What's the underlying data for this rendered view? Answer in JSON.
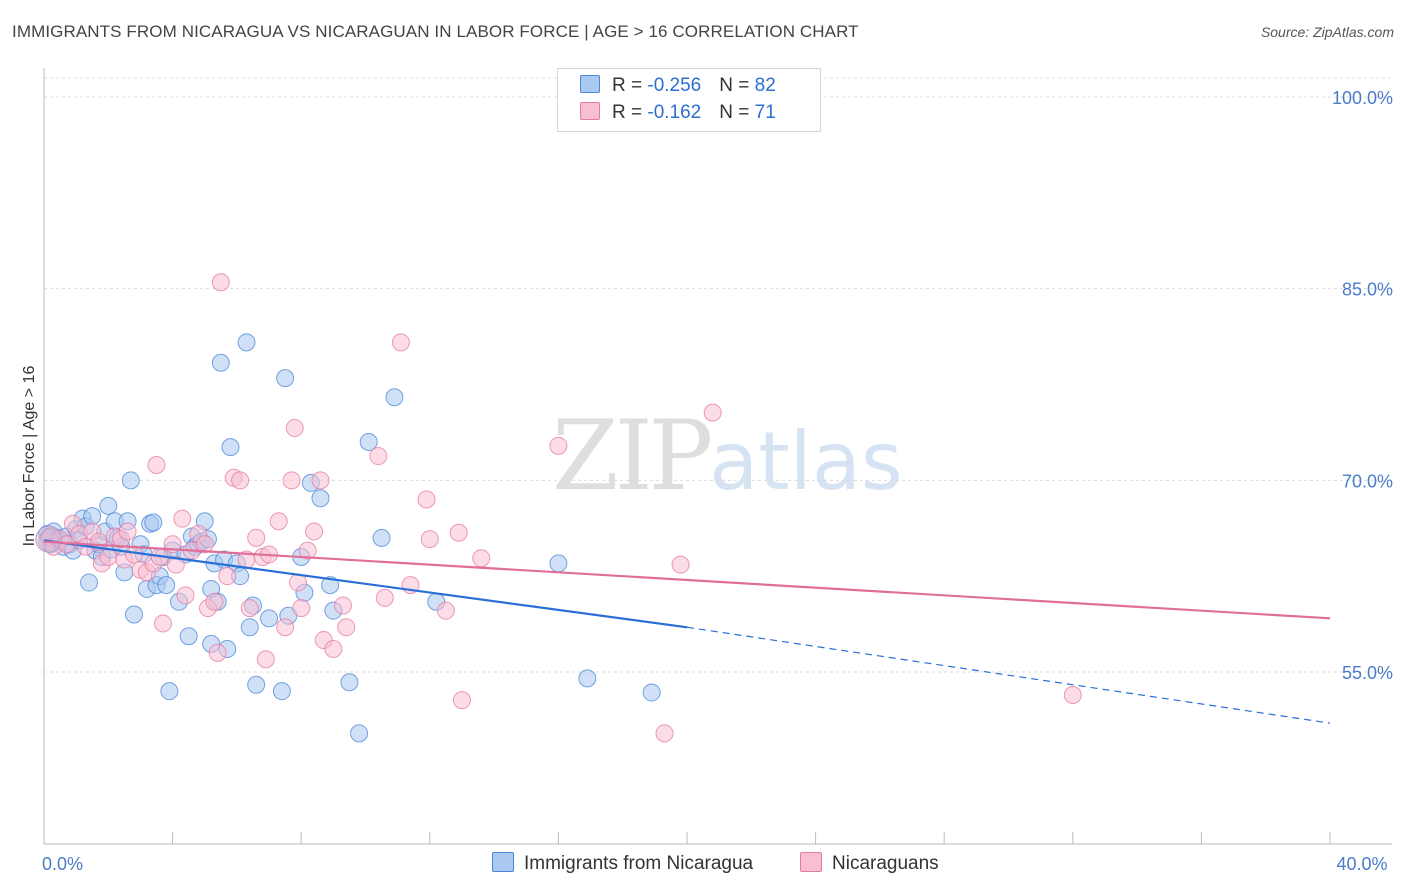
{
  "title": "IMMIGRANTS FROM NICARAGUA VS NICARAGUAN IN LABOR FORCE | AGE > 16 CORRELATION CHART",
  "source": "Source: ZipAtlas.com",
  "watermark": {
    "zip": "ZIP",
    "atlas": "atlas"
  },
  "legend": {
    "rows": [
      {
        "r_label": "R = ",
        "r_value": "-0.256",
        "n_label": "N = ",
        "n_value": "82",
        "color": "#aac8f0"
      },
      {
        "r_label": "R = ",
        "r_value": "-0.162",
        "n_label": "N = ",
        "n_value": "71",
        "color": "#f8bfd3"
      }
    ]
  },
  "bottom_legend": [
    {
      "label": "Immigrants from Nicaragua",
      "color": "#aac8f0"
    },
    {
      "label": "Nicaraguans",
      "color": "#f8bfd3"
    }
  ],
  "chart_data": {
    "type": "scatter",
    "ylabel": "In Labor Force | Age > 16",
    "xlim": [
      0,
      40
    ],
    "ylim": [
      40,
      102
    ],
    "x_tick_labels": [
      {
        "value": 0,
        "label": "0.0%"
      },
      {
        "value": 40,
        "label": "40.0%"
      }
    ],
    "y_ticks": [
      {
        "value": 100,
        "label": "100.0%"
      },
      {
        "value": 85,
        "label": "85.0%"
      },
      {
        "value": 70,
        "label": "70.0%"
      },
      {
        "value": 55,
        "label": "55.0%"
      }
    ],
    "x_minor_ticks": [
      0,
      4,
      8,
      12,
      16,
      20,
      24,
      28,
      32,
      36,
      40
    ],
    "grid": true,
    "series": [
      {
        "name": "Immigrants from Nicaragua",
        "color": "#4a86d8",
        "fill": "#aac8f0",
        "trend": {
          "x0": 0,
          "y0": 65.3,
          "x1": 20,
          "y1": 58.5,
          "x_dash_end": 40,
          "y_dash_end": 51.0,
          "color": "#2a6fd6"
        },
        "points": [
          [
            0.1,
            65.8
          ],
          [
            0.2,
            65.0
          ],
          [
            0.3,
            66.0
          ],
          [
            0.4,
            65.5
          ],
          [
            0.5,
            65.2
          ],
          [
            0.6,
            64.8
          ],
          [
            0.7,
            65.6
          ],
          [
            0.8,
            65.0
          ],
          [
            0.9,
            64.5
          ],
          [
            1.0,
            66.2
          ],
          [
            1.1,
            65.3
          ],
          [
            1.2,
            67.0
          ],
          [
            1.3,
            66.4
          ],
          [
            1.4,
            62.0
          ],
          [
            1.5,
            67.2
          ],
          [
            1.6,
            64.5
          ],
          [
            1.7,
            65.0
          ],
          [
            1.8,
            64.0
          ],
          [
            1.9,
            66.0
          ],
          [
            2.0,
            68.0
          ],
          [
            2.1,
            64.6
          ],
          [
            2.2,
            66.8
          ],
          [
            2.3,
            65.5
          ],
          [
            2.4,
            64.8
          ],
          [
            2.5,
            62.8
          ],
          [
            2.6,
            66.8
          ],
          [
            2.7,
            70.0
          ],
          [
            2.8,
            59.5
          ],
          [
            3.0,
            65.0
          ],
          [
            3.1,
            64.2
          ],
          [
            3.2,
            61.5
          ],
          [
            3.3,
            66.6
          ],
          [
            3.4,
            66.7
          ],
          [
            3.5,
            61.8
          ],
          [
            3.6,
            62.5
          ],
          [
            3.7,
            64.0
          ],
          [
            3.8,
            61.8
          ],
          [
            3.9,
            53.5
          ],
          [
            4.0,
            64.5
          ],
          [
            4.2,
            60.5
          ],
          [
            4.4,
            64.2
          ],
          [
            4.5,
            57.8
          ],
          [
            4.6,
            65.6
          ],
          [
            4.7,
            64.8
          ],
          [
            4.8,
            65.0
          ],
          [
            4.9,
            65.2
          ],
          [
            5.0,
            66.8
          ],
          [
            5.1,
            65.4
          ],
          [
            5.2,
            61.5
          ],
          [
            5.2,
            57.2
          ],
          [
            5.3,
            63.5
          ],
          [
            5.4,
            60.5
          ],
          [
            5.5,
            79.2
          ],
          [
            5.6,
            63.8
          ],
          [
            5.7,
            56.8
          ],
          [
            5.8,
            72.6
          ],
          [
            6.0,
            63.5
          ],
          [
            6.1,
            62.5
          ],
          [
            6.3,
            80.8
          ],
          [
            6.4,
            58.5
          ],
          [
            6.5,
            60.2
          ],
          [
            6.6,
            54.0
          ],
          [
            7.0,
            59.2
          ],
          [
            7.4,
            53.5
          ],
          [
            7.5,
            78.0
          ],
          [
            7.6,
            59.4
          ],
          [
            8.0,
            64.0
          ],
          [
            8.1,
            61.2
          ],
          [
            8.3,
            69.8
          ],
          [
            8.6,
            68.6
          ],
          [
            8.9,
            61.8
          ],
          [
            9.0,
            59.8
          ],
          [
            9.5,
            54.2
          ],
          [
            9.8,
            50.2
          ],
          [
            10.1,
            73.0
          ],
          [
            10.5,
            65.5
          ],
          [
            10.9,
            76.5
          ],
          [
            12.2,
            60.5
          ],
          [
            16.0,
            63.5
          ],
          [
            16.9,
            54.5
          ],
          [
            18.9,
            53.4
          ],
          [
            0.15,
            65.5
          ]
        ]
      },
      {
        "name": "Nicaraguans",
        "color": "#e77aa0",
        "fill": "#f8bfd3",
        "trend": {
          "x0": 0,
          "y0": 65.2,
          "x1": 40,
          "y1": 59.2,
          "color": "#e06f98"
        },
        "points": [
          [
            0.1,
            65.2
          ],
          [
            0.2,
            65.6
          ],
          [
            0.3,
            64.8
          ],
          [
            0.5,
            65.4
          ],
          [
            0.7,
            65.0
          ],
          [
            0.9,
            66.6
          ],
          [
            1.1,
            65.8
          ],
          [
            1.3,
            64.8
          ],
          [
            1.5,
            66.0
          ],
          [
            1.7,
            65.2
          ],
          [
            1.8,
            63.5
          ],
          [
            2.0,
            64.0
          ],
          [
            2.2,
            65.6
          ],
          [
            2.4,
            65.4
          ],
          [
            2.5,
            63.8
          ],
          [
            2.6,
            66.0
          ],
          [
            2.8,
            64.2
          ],
          [
            3.0,
            63.0
          ],
          [
            3.2,
            62.8
          ],
          [
            3.4,
            63.5
          ],
          [
            3.5,
            71.2
          ],
          [
            3.6,
            64.0
          ],
          [
            3.7,
            58.8
          ],
          [
            4.0,
            65.0
          ],
          [
            4.1,
            63.4
          ],
          [
            4.3,
            67.0
          ],
          [
            4.4,
            61.0
          ],
          [
            4.6,
            64.5
          ],
          [
            4.8,
            65.8
          ],
          [
            5.0,
            65.0
          ],
          [
            5.1,
            60.0
          ],
          [
            5.3,
            60.5
          ],
          [
            5.4,
            56.5
          ],
          [
            5.5,
            85.5
          ],
          [
            5.7,
            62.5
          ],
          [
            5.9,
            70.2
          ],
          [
            6.1,
            70.0
          ],
          [
            6.3,
            63.8
          ],
          [
            6.4,
            60.0
          ],
          [
            6.6,
            65.5
          ],
          [
            6.8,
            64.0
          ],
          [
            6.9,
            56.0
          ],
          [
            7.0,
            64.2
          ],
          [
            7.3,
            66.8
          ],
          [
            7.5,
            58.5
          ],
          [
            7.7,
            70.0
          ],
          [
            7.8,
            74.1
          ],
          [
            7.9,
            62.0
          ],
          [
            8.0,
            60.0
          ],
          [
            8.2,
            64.5
          ],
          [
            8.4,
            66.0
          ],
          [
            8.6,
            70.0
          ],
          [
            8.7,
            57.5
          ],
          [
            9.0,
            56.8
          ],
          [
            9.3,
            60.2
          ],
          [
            9.4,
            58.5
          ],
          [
            10.4,
            71.9
          ],
          [
            10.6,
            60.8
          ],
          [
            11.1,
            80.8
          ],
          [
            11.4,
            61.8
          ],
          [
            11.9,
            68.5
          ],
          [
            12.0,
            65.4
          ],
          [
            12.5,
            59.8
          ],
          [
            12.9,
            65.9
          ],
          [
            13.0,
            52.8
          ],
          [
            13.6,
            63.9
          ],
          [
            16.0,
            72.7
          ],
          [
            19.3,
            50.2
          ],
          [
            19.8,
            63.4
          ],
          [
            20.8,
            75.3
          ],
          [
            32.0,
            53.2
          ]
        ]
      }
    ]
  }
}
